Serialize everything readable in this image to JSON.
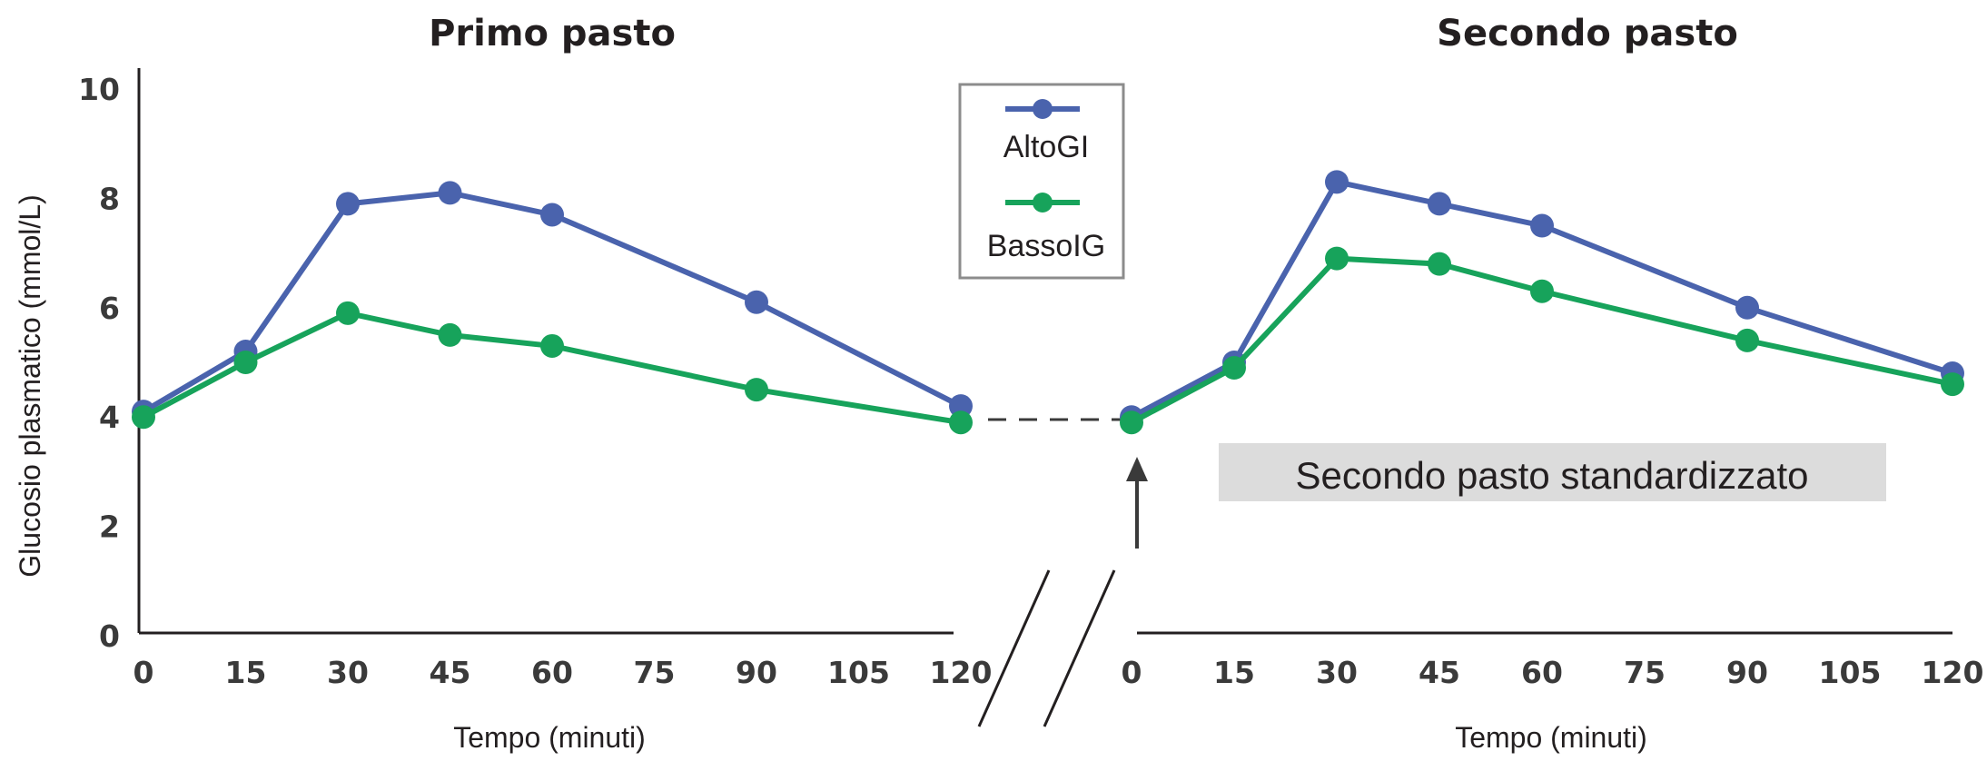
{
  "colors": {
    "alto": "#4a63ad",
    "basso": "#17a35b",
    "annotation_bg": "#dcdcdc",
    "legend_border": "#8c8c8c",
    "axis": "#231f20"
  },
  "chart_data": [
    {
      "type": "line",
      "title": "Primo pasto",
      "xlabel": "Tempo (minuti)",
      "ylabel": "Glucosio plasmatico (mmol/L)",
      "ylim": [
        0,
        10
      ],
      "xlim": [
        0,
        120
      ],
      "x_ticks": [
        "0",
        "15",
        "30",
        "45",
        "60",
        "75",
        "90",
        "105",
        "120"
      ],
      "y_ticks": [
        "0",
        "2",
        "4",
        "6",
        "8",
        "10"
      ],
      "series": [
        {
          "name": "AltoGI",
          "x": [
            0,
            15,
            30,
            45,
            60,
            90,
            120
          ],
          "values": [
            4.1,
            5.2,
            7.9,
            8.1,
            7.7,
            6.1,
            4.2
          ]
        },
        {
          "name": "BassoIG",
          "x": [
            0,
            15,
            30,
            45,
            60,
            90,
            120
          ],
          "values": [
            4.0,
            5.0,
            5.9,
            5.5,
            5.3,
            4.5,
            3.9
          ]
        }
      ]
    },
    {
      "type": "line",
      "title": "Secondo pasto",
      "xlabel": "Tempo (minuti)",
      "ylim": [
        0,
        10
      ],
      "xlim": [
        0,
        120
      ],
      "x_ticks": [
        "0",
        "15",
        "30",
        "45",
        "60",
        "75",
        "90",
        "105",
        "120"
      ],
      "series": [
        {
          "name": "AltoGI",
          "x": [
            0,
            15,
            30,
            45,
            60,
            90,
            120
          ],
          "values": [
            4.0,
            5.0,
            8.3,
            7.9,
            7.5,
            6.0,
            4.8
          ]
        },
        {
          "name": "BassoIG",
          "x": [
            0,
            15,
            30,
            45,
            60,
            90,
            120
          ],
          "values": [
            3.9,
            4.9,
            6.9,
            6.8,
            6.3,
            5.4,
            4.6
          ]
        }
      ]
    }
  ],
  "legend": {
    "items": [
      "AltoGI",
      "BassoIG"
    ]
  },
  "annotation": {
    "text": "Secondo pasto standardizzato"
  }
}
